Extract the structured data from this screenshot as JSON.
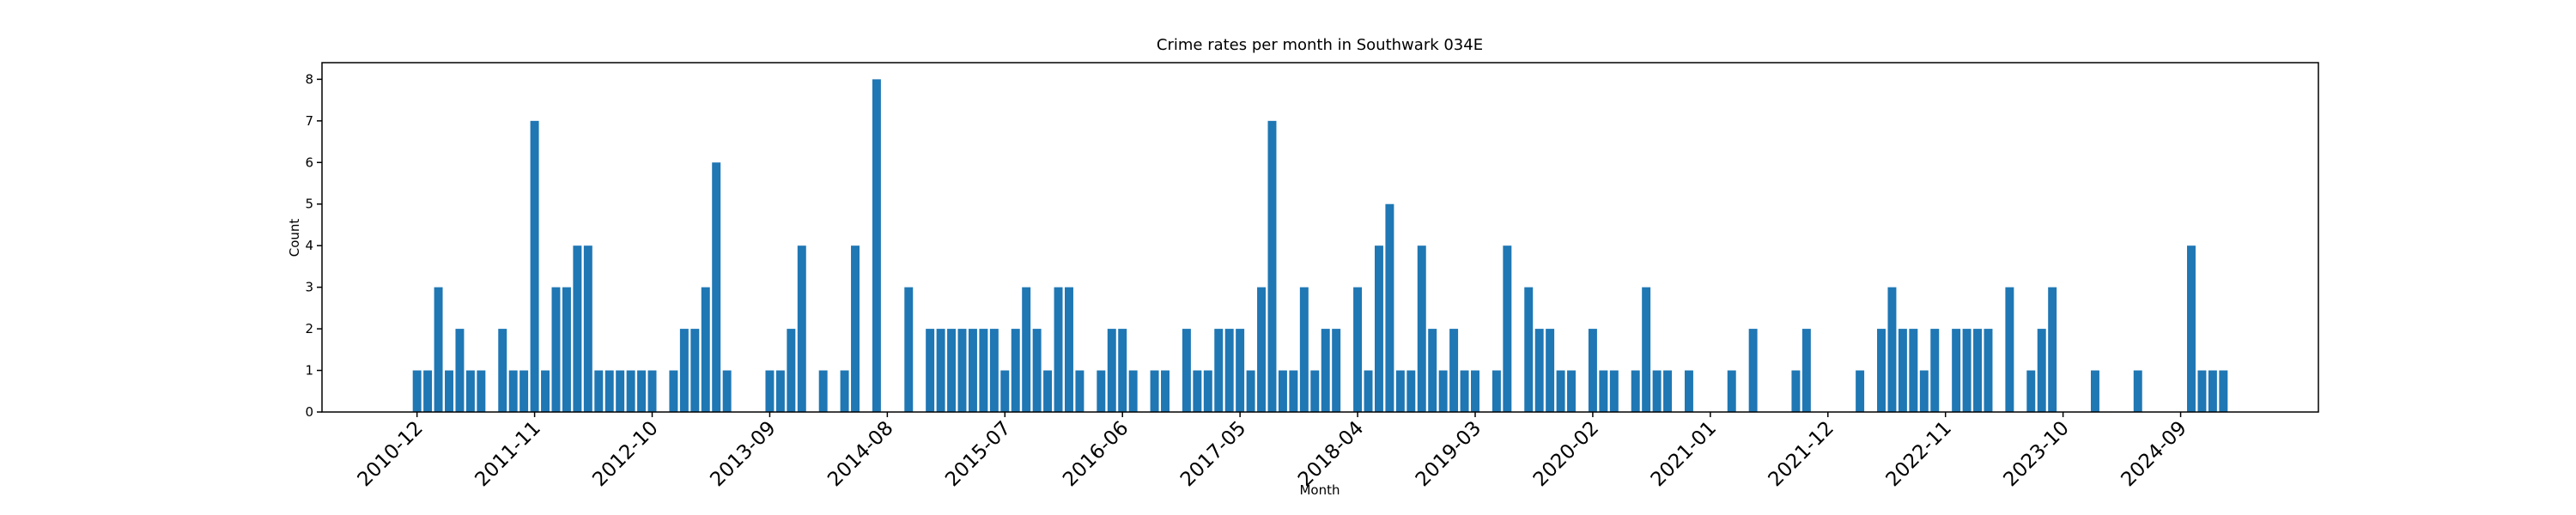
{
  "chart_data": {
    "type": "bar",
    "title": "Crime rates per month in Southwark 034E",
    "x_label": "Month",
    "y_label": "Count",
    "color": "#1f77b4",
    "categories": [
      "2010-12",
      null,
      null,
      null,
      null,
      null,
      null,
      null,
      null,
      null,
      null,
      "2011-11",
      null,
      null,
      null,
      null,
      null,
      null,
      null,
      null,
      null,
      null,
      "2012-10",
      null,
      null,
      null,
      null,
      null,
      null,
      null,
      null,
      null,
      null,
      "2013-09",
      null,
      null,
      null,
      null,
      null,
      null,
      null,
      null,
      null,
      null,
      "2014-08",
      null,
      null,
      null,
      null,
      null,
      null,
      null,
      null,
      null,
      null,
      "2015-07",
      null,
      null,
      null,
      null,
      null,
      null,
      null,
      null,
      null,
      null,
      "2016-06",
      null,
      null,
      null,
      null,
      null,
      null,
      null,
      null,
      null,
      null,
      "2017-05",
      null,
      null,
      null,
      null,
      null,
      null,
      null,
      null,
      null,
      null,
      "2018-04",
      null,
      null,
      null,
      null,
      null,
      null,
      null,
      null,
      null,
      null,
      "2019-03",
      null,
      null,
      null,
      null,
      null,
      null,
      null,
      null,
      null,
      null,
      "2020-02",
      null,
      null,
      null,
      null,
      null,
      null,
      null,
      null,
      null,
      null,
      "2021-01",
      null,
      null,
      null,
      null,
      null,
      null,
      null,
      null,
      null,
      null,
      "2021-12",
      null,
      null,
      null,
      null,
      null,
      null,
      null,
      null,
      null,
      null,
      "2022-11",
      null,
      null,
      null,
      null,
      null,
      null,
      null,
      null,
      null,
      null,
      "2023-10",
      null,
      null,
      null,
      null,
      null,
      null,
      null,
      null,
      null,
      null,
      "2024-09",
      null,
      null,
      null,
      null
    ],
    "values": [
      1,
      1,
      3,
      1,
      2,
      1,
      1,
      0,
      2,
      1,
      1,
      7,
      1,
      3,
      3,
      4,
      4,
      1,
      1,
      1,
      1,
      1,
      1,
      0,
      1,
      2,
      2,
      3,
      6,
      1,
      0,
      0,
      0,
      1,
      1,
      2,
      4,
      0,
      1,
      0,
      1,
      4,
      0,
      8,
      0,
      0,
      3,
      0,
      2,
      2,
      2,
      2,
      2,
      2,
      2,
      1,
      2,
      3,
      2,
      1,
      3,
      3,
      1,
      0,
      1,
      2,
      2,
      1,
      0,
      1,
      1,
      0,
      2,
      1,
      1,
      2,
      2,
      2,
      1,
      3,
      7,
      1,
      1,
      3,
      1,
      2,
      2,
      0,
      3,
      1,
      4,
      5,
      1,
      1,
      4,
      2,
      1,
      2,
      1,
      1,
      0,
      1,
      4,
      0,
      3,
      2,
      2,
      1,
      1,
      0,
      2,
      1,
      1,
      0,
      1,
      3,
      1,
      1,
      0,
      1,
      0,
      0,
      0,
      1,
      0,
      2,
      0,
      0,
      0,
      1,
      2,
      0,
      0,
      0,
      0,
      1,
      0,
      2,
      3,
      2,
      2,
      1,
      2,
      0,
      2,
      2,
      2,
      2,
      0,
      3,
      0,
      1,
      2,
      3,
      0,
      0,
      0,
      1,
      0,
      0,
      0,
      1,
      0,
      0,
      0,
      0,
      4,
      1,
      1,
      1
    ],
    "ylim": [
      0,
      8.4
    ],
    "yticks": [
      0,
      1,
      2,
      3,
      4,
      5,
      6,
      7,
      8
    ]
  }
}
